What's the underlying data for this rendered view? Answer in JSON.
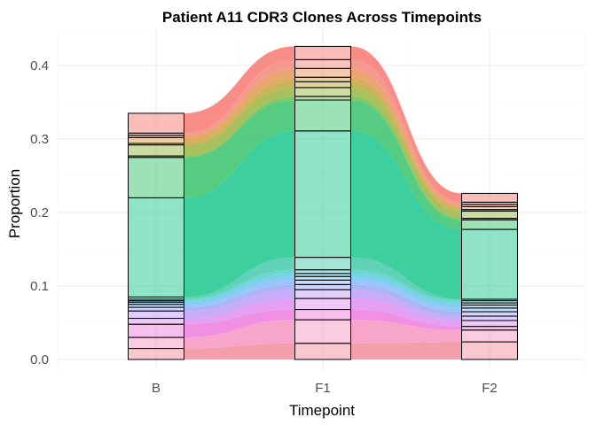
{
  "chart_data": {
    "type": "alluvial",
    "title": "Patient A11 CDR3 Clones Across Timepoints",
    "xlabel": "Timepoint",
    "ylabel": "Proportion",
    "ylim": [
      0,
      0.45
    ],
    "y_ticks": [
      0.0,
      0.1,
      0.2,
      0.3,
      0.4
    ],
    "y_tick_labels": [
      "0.0",
      "0.1",
      "0.2",
      "0.3",
      "0.4"
    ],
    "grid": true,
    "legend": "none",
    "categories": [
      "B",
      "F1",
      "F2"
    ],
    "clones": [
      {
        "color": "#f29aa6",
        "values": [
          0.015,
          0.022,
          0.024
        ]
      },
      {
        "color": "#f7a0c8",
        "values": [
          0.015,
          0.032,
          0.016
        ]
      },
      {
        "color": "#f08ae0",
        "values": [
          0.018,
          0.014,
          0.005
        ]
      },
      {
        "color": "#e39cf2",
        "values": [
          0.008,
          0.015,
          0.008
        ]
      },
      {
        "color": "#c6a8f7",
        "values": [
          0.01,
          0.012,
          0.006
        ]
      },
      {
        "color": "#a8b0f8",
        "values": [
          0.005,
          0.007,
          0.006
        ]
      },
      {
        "color": "#93c2f8",
        "values": [
          0.004,
          0.006,
          0.005
        ]
      },
      {
        "color": "#7fc8f3",
        "values": [
          0.003,
          0.005,
          0.004
        ]
      },
      {
        "color": "#6ad0e6",
        "values": [
          0.002,
          0.004,
          0.003
        ]
      },
      {
        "color": "#66d4cf",
        "values": [
          0.002,
          0.005,
          0.003
        ]
      },
      {
        "color": "#59cfb4",
        "values": [
          0.003,
          0.017,
          0.002
        ]
      },
      {
        "color": "#33cc99",
        "values": [
          0.135,
          0.172,
          0.095
        ]
      },
      {
        "color": "#4cc97a",
        "values": [
          0.055,
          0.042,
          0.013
        ]
      },
      {
        "color": "#7cc35e",
        "values": [
          0.002,
          0.005,
          0.002
        ]
      },
      {
        "color": "#a3bd55",
        "values": [
          0.015,
          0.012,
          0.01
        ]
      },
      {
        "color": "#c5b04d",
        "values": [
          0.002,
          0.008,
          0.002
        ]
      },
      {
        "color": "#d8a957",
        "values": [
          0.008,
          0.006,
          0.004
        ]
      },
      {
        "color": "#eb9f6c",
        "values": [
          0.003,
          0.012,
          0.003
        ]
      },
      {
        "color": "#f4938a",
        "values": [
          0.003,
          0.012,
          0.003
        ]
      },
      {
        "color": "#f7877f",
        "values": [
          0.027,
          0.018,
          0.012
        ]
      }
    ]
  }
}
